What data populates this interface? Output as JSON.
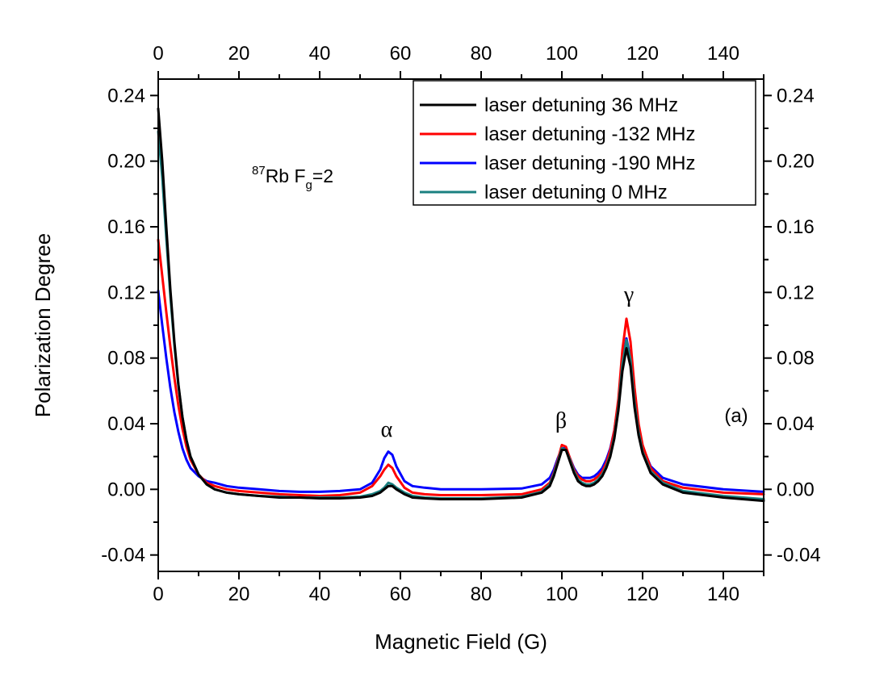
{
  "chart_data": {
    "type": "line",
    "xlabel": "Magnetic Field (G)",
    "ylabel": "Polarization Degree",
    "xlim": [
      0,
      150
    ],
    "ylim": [
      -0.05,
      0.25
    ],
    "x_ticks": [
      "0",
      "20",
      "40",
      "60",
      "80",
      "100",
      "120",
      "140"
    ],
    "y_ticks": [
      "-0.04",
      "0.00",
      "0.04",
      "0.08",
      "0.12",
      "0.16",
      "0.20",
      "0.24"
    ],
    "legend_position": "top-right",
    "grid": false,
    "series": [
      {
        "name": "laser detuning 36 MHz",
        "color": "#000000",
        "x": [
          0,
          1,
          2,
          3,
          4,
          5,
          6,
          7,
          8,
          10,
          12,
          14,
          17,
          20,
          25,
          30,
          35,
          40,
          45,
          50,
          53,
          55,
          56,
          57,
          58,
          59,
          61,
          63,
          66,
          70,
          80,
          90,
          95,
          97,
          98,
          99,
          100,
          101,
          102,
          103,
          104,
          105,
          106,
          107,
          108,
          109,
          110,
          111,
          112,
          113,
          114,
          115,
          116,
          117,
          118,
          119,
          120,
          122,
          125,
          130,
          140,
          150
        ],
        "y": [
          0.232,
          0.2,
          0.16,
          0.122,
          0.09,
          0.064,
          0.044,
          0.03,
          0.02,
          0.009,
          0.003,
          0.0,
          -0.002,
          -0.003,
          -0.004,
          -0.005,
          -0.005,
          -0.0055,
          -0.0055,
          -0.005,
          -0.004,
          -0.002,
          0.0,
          0.002,
          0.002,
          0.0,
          -0.003,
          -0.005,
          -0.0055,
          -0.006,
          -0.006,
          -0.005,
          -0.002,
          0.002,
          0.008,
          0.016,
          0.024,
          0.024,
          0.017,
          0.01,
          0.005,
          0.003,
          0.002,
          0.002,
          0.003,
          0.005,
          0.008,
          0.013,
          0.02,
          0.031,
          0.048,
          0.072,
          0.086,
          0.075,
          0.05,
          0.033,
          0.022,
          0.01,
          0.003,
          -0.002,
          -0.005,
          -0.007
        ]
      },
      {
        "name": "laser detuning -132 MHz",
        "color": "#ff0000",
        "x": [
          0,
          1,
          2,
          3,
          4,
          5,
          6,
          7,
          8,
          10,
          12,
          14,
          17,
          20,
          25,
          30,
          35,
          40,
          45,
          50,
          53,
          55,
          56,
          57,
          58,
          59,
          61,
          63,
          66,
          70,
          80,
          90,
          95,
          97,
          98,
          99,
          100,
          101,
          102,
          103,
          104,
          105,
          106,
          107,
          108,
          109,
          110,
          111,
          112,
          113,
          114,
          115,
          116,
          117,
          118,
          119,
          120,
          122,
          125,
          130,
          140,
          150
        ],
        "y": [
          0.152,
          0.13,
          0.108,
          0.087,
          0.068,
          0.051,
          0.037,
          0.026,
          0.018,
          0.009,
          0.004,
          0.002,
          0.0,
          -0.001,
          -0.002,
          -0.003,
          -0.0035,
          -0.004,
          -0.0035,
          -0.002,
          0.002,
          0.008,
          0.012,
          0.015,
          0.013,
          0.008,
          0.001,
          -0.002,
          -0.003,
          -0.0035,
          -0.0035,
          -0.003,
          0.0,
          0.004,
          0.01,
          0.018,
          0.027,
          0.026,
          0.019,
          0.012,
          0.008,
          0.006,
          0.005,
          0.005,
          0.006,
          0.008,
          0.011,
          0.016,
          0.024,
          0.036,
          0.055,
          0.085,
          0.104,
          0.09,
          0.062,
          0.04,
          0.027,
          0.013,
          0.005,
          0.001,
          -0.002,
          -0.003
        ]
      },
      {
        "name": "laser detuning -190 MHz",
        "color": "#0000ff",
        "x": [
          0,
          1,
          2,
          3,
          4,
          5,
          6,
          7,
          8,
          10,
          12,
          14,
          17,
          20,
          25,
          30,
          35,
          40,
          45,
          50,
          53,
          55,
          56,
          57,
          58,
          59,
          61,
          63,
          66,
          70,
          80,
          90,
          95,
          97,
          98,
          99,
          100,
          101,
          102,
          103,
          104,
          105,
          106,
          107,
          108,
          109,
          110,
          111,
          112,
          113,
          114,
          115,
          116,
          117,
          118,
          119,
          120,
          122,
          125,
          130,
          140,
          150
        ],
        "y": [
          0.121,
          0.1,
          0.08,
          0.062,
          0.047,
          0.035,
          0.025,
          0.018,
          0.013,
          0.008,
          0.005,
          0.004,
          0.002,
          0.001,
          0.0,
          -0.001,
          -0.0015,
          -0.0015,
          -0.001,
          0.0,
          0.004,
          0.012,
          0.019,
          0.023,
          0.021,
          0.014,
          0.005,
          0.002,
          0.001,
          0.0,
          0.0,
          0.0005,
          0.003,
          0.007,
          0.012,
          0.019,
          0.025,
          0.025,
          0.019,
          0.013,
          0.009,
          0.007,
          0.007,
          0.007,
          0.008,
          0.01,
          0.013,
          0.018,
          0.025,
          0.036,
          0.053,
          0.078,
          0.092,
          0.08,
          0.056,
          0.038,
          0.026,
          0.014,
          0.007,
          0.003,
          0.0,
          -0.0015
        ]
      },
      {
        "name": "laser detuning 0 MHz",
        "color": "#1a8080",
        "x": [
          0,
          1,
          2,
          3,
          4,
          5,
          6,
          7,
          8,
          10,
          12,
          14,
          17,
          20,
          25,
          30,
          35,
          40,
          45,
          50,
          53,
          55,
          56,
          57,
          58,
          59,
          61,
          63,
          66,
          70,
          80,
          90,
          95,
          97,
          98,
          99,
          100,
          101,
          102,
          103,
          104,
          105,
          106,
          107,
          108,
          109,
          110,
          111,
          112,
          113,
          114,
          115,
          116,
          117,
          118,
          119,
          120,
          122,
          125,
          130,
          140,
          150
        ],
        "y": [
          0.218,
          0.19,
          0.153,
          0.118,
          0.088,
          0.063,
          0.044,
          0.03,
          0.02,
          0.009,
          0.003,
          0.0,
          -0.002,
          -0.003,
          -0.004,
          -0.0045,
          -0.005,
          -0.005,
          -0.005,
          -0.0045,
          -0.003,
          -0.001,
          0.001,
          0.004,
          0.003,
          0.001,
          -0.002,
          -0.004,
          -0.005,
          -0.0055,
          -0.0055,
          -0.0045,
          -0.0015,
          0.003,
          0.009,
          0.017,
          0.025,
          0.024,
          0.018,
          0.011,
          0.006,
          0.004,
          0.003,
          0.003,
          0.004,
          0.006,
          0.009,
          0.014,
          0.021,
          0.032,
          0.05,
          0.076,
          0.091,
          0.079,
          0.053,
          0.035,
          0.023,
          0.011,
          0.004,
          -0.001,
          -0.004,
          -0.006
        ]
      }
    ],
    "annotations": {
      "isotope_mass": "87",
      "isotope_symbol": "Rb F",
      "isotope_subscript": "g",
      "isotope_value": "=2",
      "alpha": "α",
      "beta": "β",
      "gamma": "γ",
      "panel": "(a)"
    }
  }
}
